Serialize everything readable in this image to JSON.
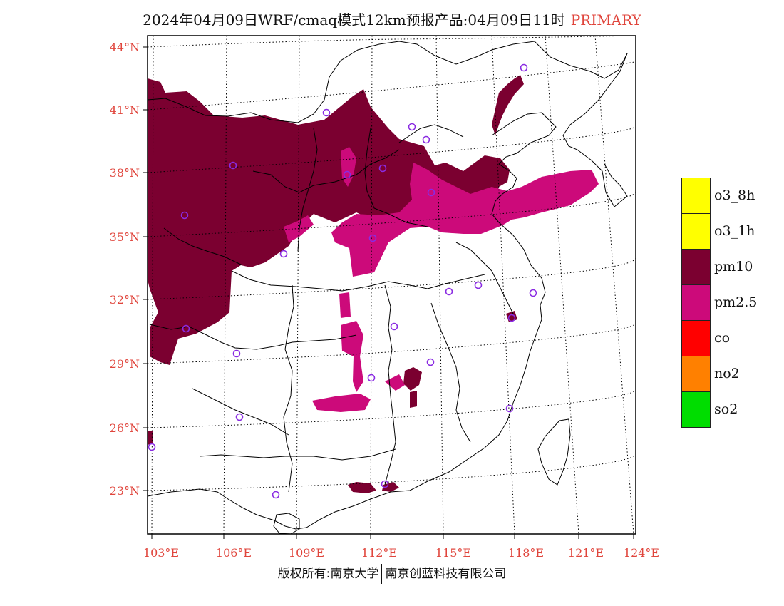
{
  "title": {
    "main": "2024年04月09日WRF/cmaq模式12km预报产品:04月09日11时",
    "tag": "PRIMARY"
  },
  "map": {
    "lat_labels": [
      "44°N",
      "41°N",
      "38°N",
      "35°N",
      "32°N",
      "29°N",
      "26°N",
      "23°N"
    ],
    "lon_labels": [
      "103°E",
      "106°E",
      "109°E",
      "112°E",
      "115°E",
      "118°E",
      "121°E",
      "124°E"
    ],
    "colors": {
      "pm10": "#7b0030",
      "pm25": "#cc0a7a",
      "station": "#8a2be2",
      "frame": "#000000",
      "label": "#e0453c"
    }
  },
  "legend": {
    "items": [
      {
        "label": "o3_8h",
        "color": "#ffff00"
      },
      {
        "label": "o3_1h",
        "color": "#ffff00"
      },
      {
        "label": "pm10",
        "color": "#7b0030"
      },
      {
        "label": "pm2.5",
        "color": "#cc0a7a"
      },
      {
        "label": "co",
        "color": "#ff0000"
      },
      {
        "label": "no2",
        "color": "#ff8000"
      },
      {
        "label": "so2",
        "color": "#00dd00"
      }
    ]
  },
  "footer": {
    "left": "版权所有:南京大学",
    "right": "南京创蓝科技有限公司"
  }
}
